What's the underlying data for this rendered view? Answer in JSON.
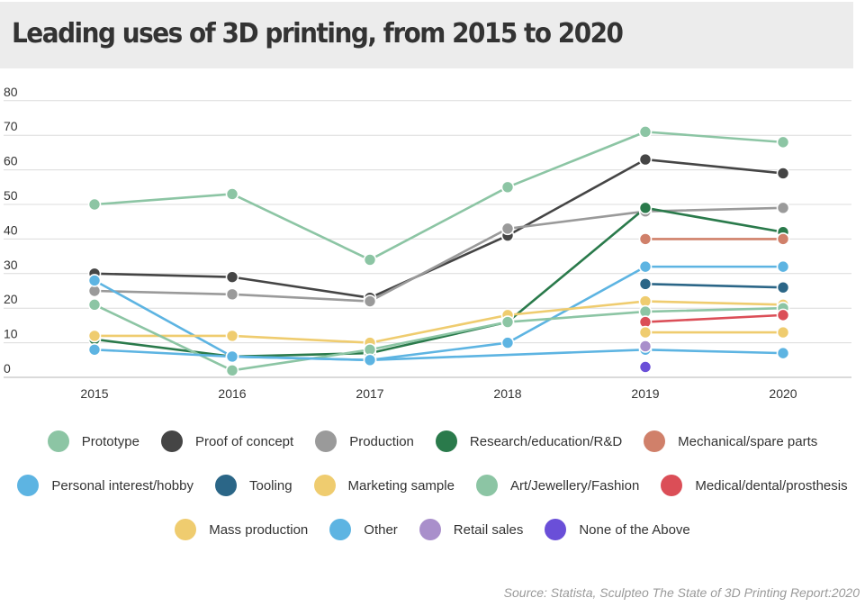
{
  "title": "Leading uses of 3D printing, from 2015 to 2020",
  "source": "Source: Statista, Sculpteo The State of 3D Printing Report:2020",
  "chart_data": {
    "type": "line",
    "title": "Leading uses of 3D printing, from 2015 to 2020",
    "x": [
      "2015",
      "2016",
      "2017",
      "2018",
      "2019",
      "2020"
    ],
    "yticks": [
      0,
      10,
      20,
      30,
      40,
      50,
      60,
      70,
      80
    ],
    "ylim": [
      0,
      80
    ],
    "grid": true,
    "legend_position": "bottom",
    "series": [
      {
        "name": "Prototype",
        "color": "#8cc5a4",
        "values": [
          50,
          53,
          34,
          55,
          71,
          68
        ]
      },
      {
        "name": "Proof of concept",
        "color": "#454545",
        "values": [
          30,
          29,
          23,
          41,
          63,
          59
        ]
      },
      {
        "name": "Production",
        "color": "#9a9a9a",
        "values": [
          25,
          24,
          22,
          43,
          48,
          49
        ]
      },
      {
        "name": "Research/education/R&D",
        "color": "#2a7a4b",
        "values": [
          11,
          6,
          7,
          16,
          49,
          42
        ]
      },
      {
        "name": "Mechanical/spare parts",
        "color": "#d0806a",
        "values": [
          null,
          null,
          null,
          null,
          40,
          40
        ]
      },
      {
        "name": "Personal interest/hobby",
        "color": "#5db4e2",
        "values": [
          28,
          6,
          5,
          10,
          32,
          32
        ]
      },
      {
        "name": "Tooling",
        "color": "#2b6687",
        "values": [
          null,
          null,
          null,
          null,
          27,
          26
        ]
      },
      {
        "name": "Marketing sample",
        "color": "#efcc6f",
        "values": [
          12,
          12,
          10,
          18,
          22,
          21
        ]
      },
      {
        "name": "Art/Jewellery/Fashion",
        "color": "#8cc5a4",
        "values": [
          21,
          2,
          8,
          16,
          19,
          20
        ]
      },
      {
        "name": "Medical/dental/prosthesis",
        "color": "#db4e57",
        "values": [
          null,
          null,
          null,
          null,
          16,
          18
        ]
      },
      {
        "name": "Mass production",
        "color": "#efcc6f",
        "values": [
          null,
          null,
          null,
          null,
          13,
          13
        ]
      },
      {
        "name": "Other",
        "color": "#5db4e2",
        "values": [
          8,
          6,
          5,
          null,
          8,
          7
        ]
      },
      {
        "name": "Retail sales",
        "color": "#a98fcb",
        "values": [
          null,
          null,
          null,
          null,
          9,
          null
        ]
      },
      {
        "name": "None of the Above",
        "color": "#6a4fd8",
        "values": [
          null,
          null,
          null,
          null,
          3,
          null
        ]
      }
    ]
  },
  "legend_rows": [
    [
      0,
      1,
      2,
      3,
      4
    ],
    [
      5,
      6,
      7,
      8,
      9
    ],
    [
      10,
      11,
      12,
      13
    ]
  ]
}
